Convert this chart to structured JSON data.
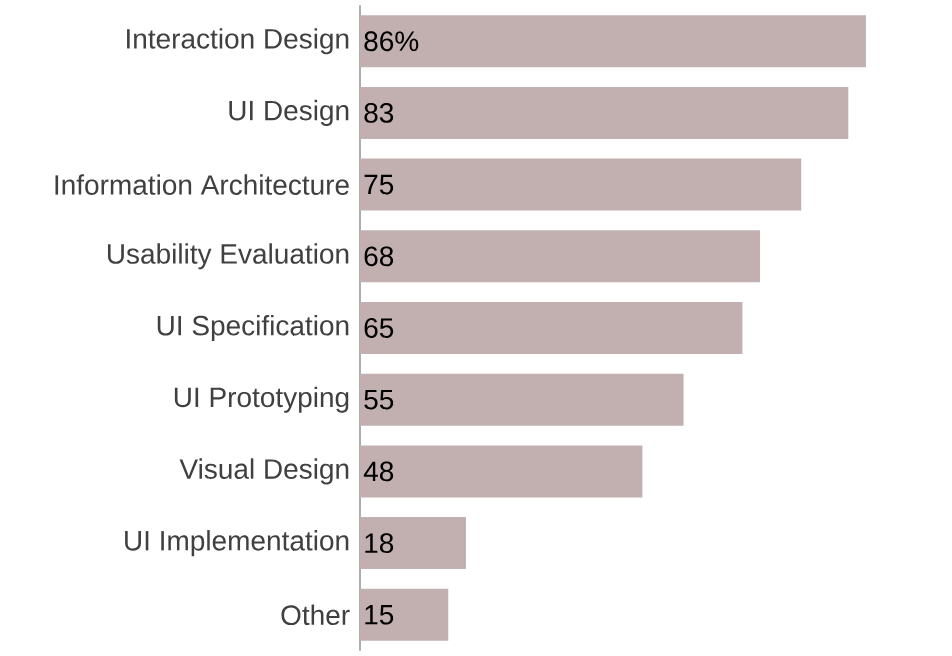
{
  "chart_data": {
    "type": "bar",
    "orientation": "horizontal",
    "color": "#c2afb0",
    "categories": [
      "Interaction Design",
      "UI Design",
      "Information Architecture",
      "Usability Evaluation",
      "UI Specification",
      "UI Prototyping",
      "Visual Design",
      "UI Implementation",
      "Other"
    ],
    "values": [
      86,
      83,
      75,
      68,
      65,
      55,
      48,
      18,
      15
    ],
    "value_labels": [
      "86%",
      "83",
      "75",
      "68",
      "65",
      "55",
      "48",
      "18",
      "15"
    ]
  }
}
